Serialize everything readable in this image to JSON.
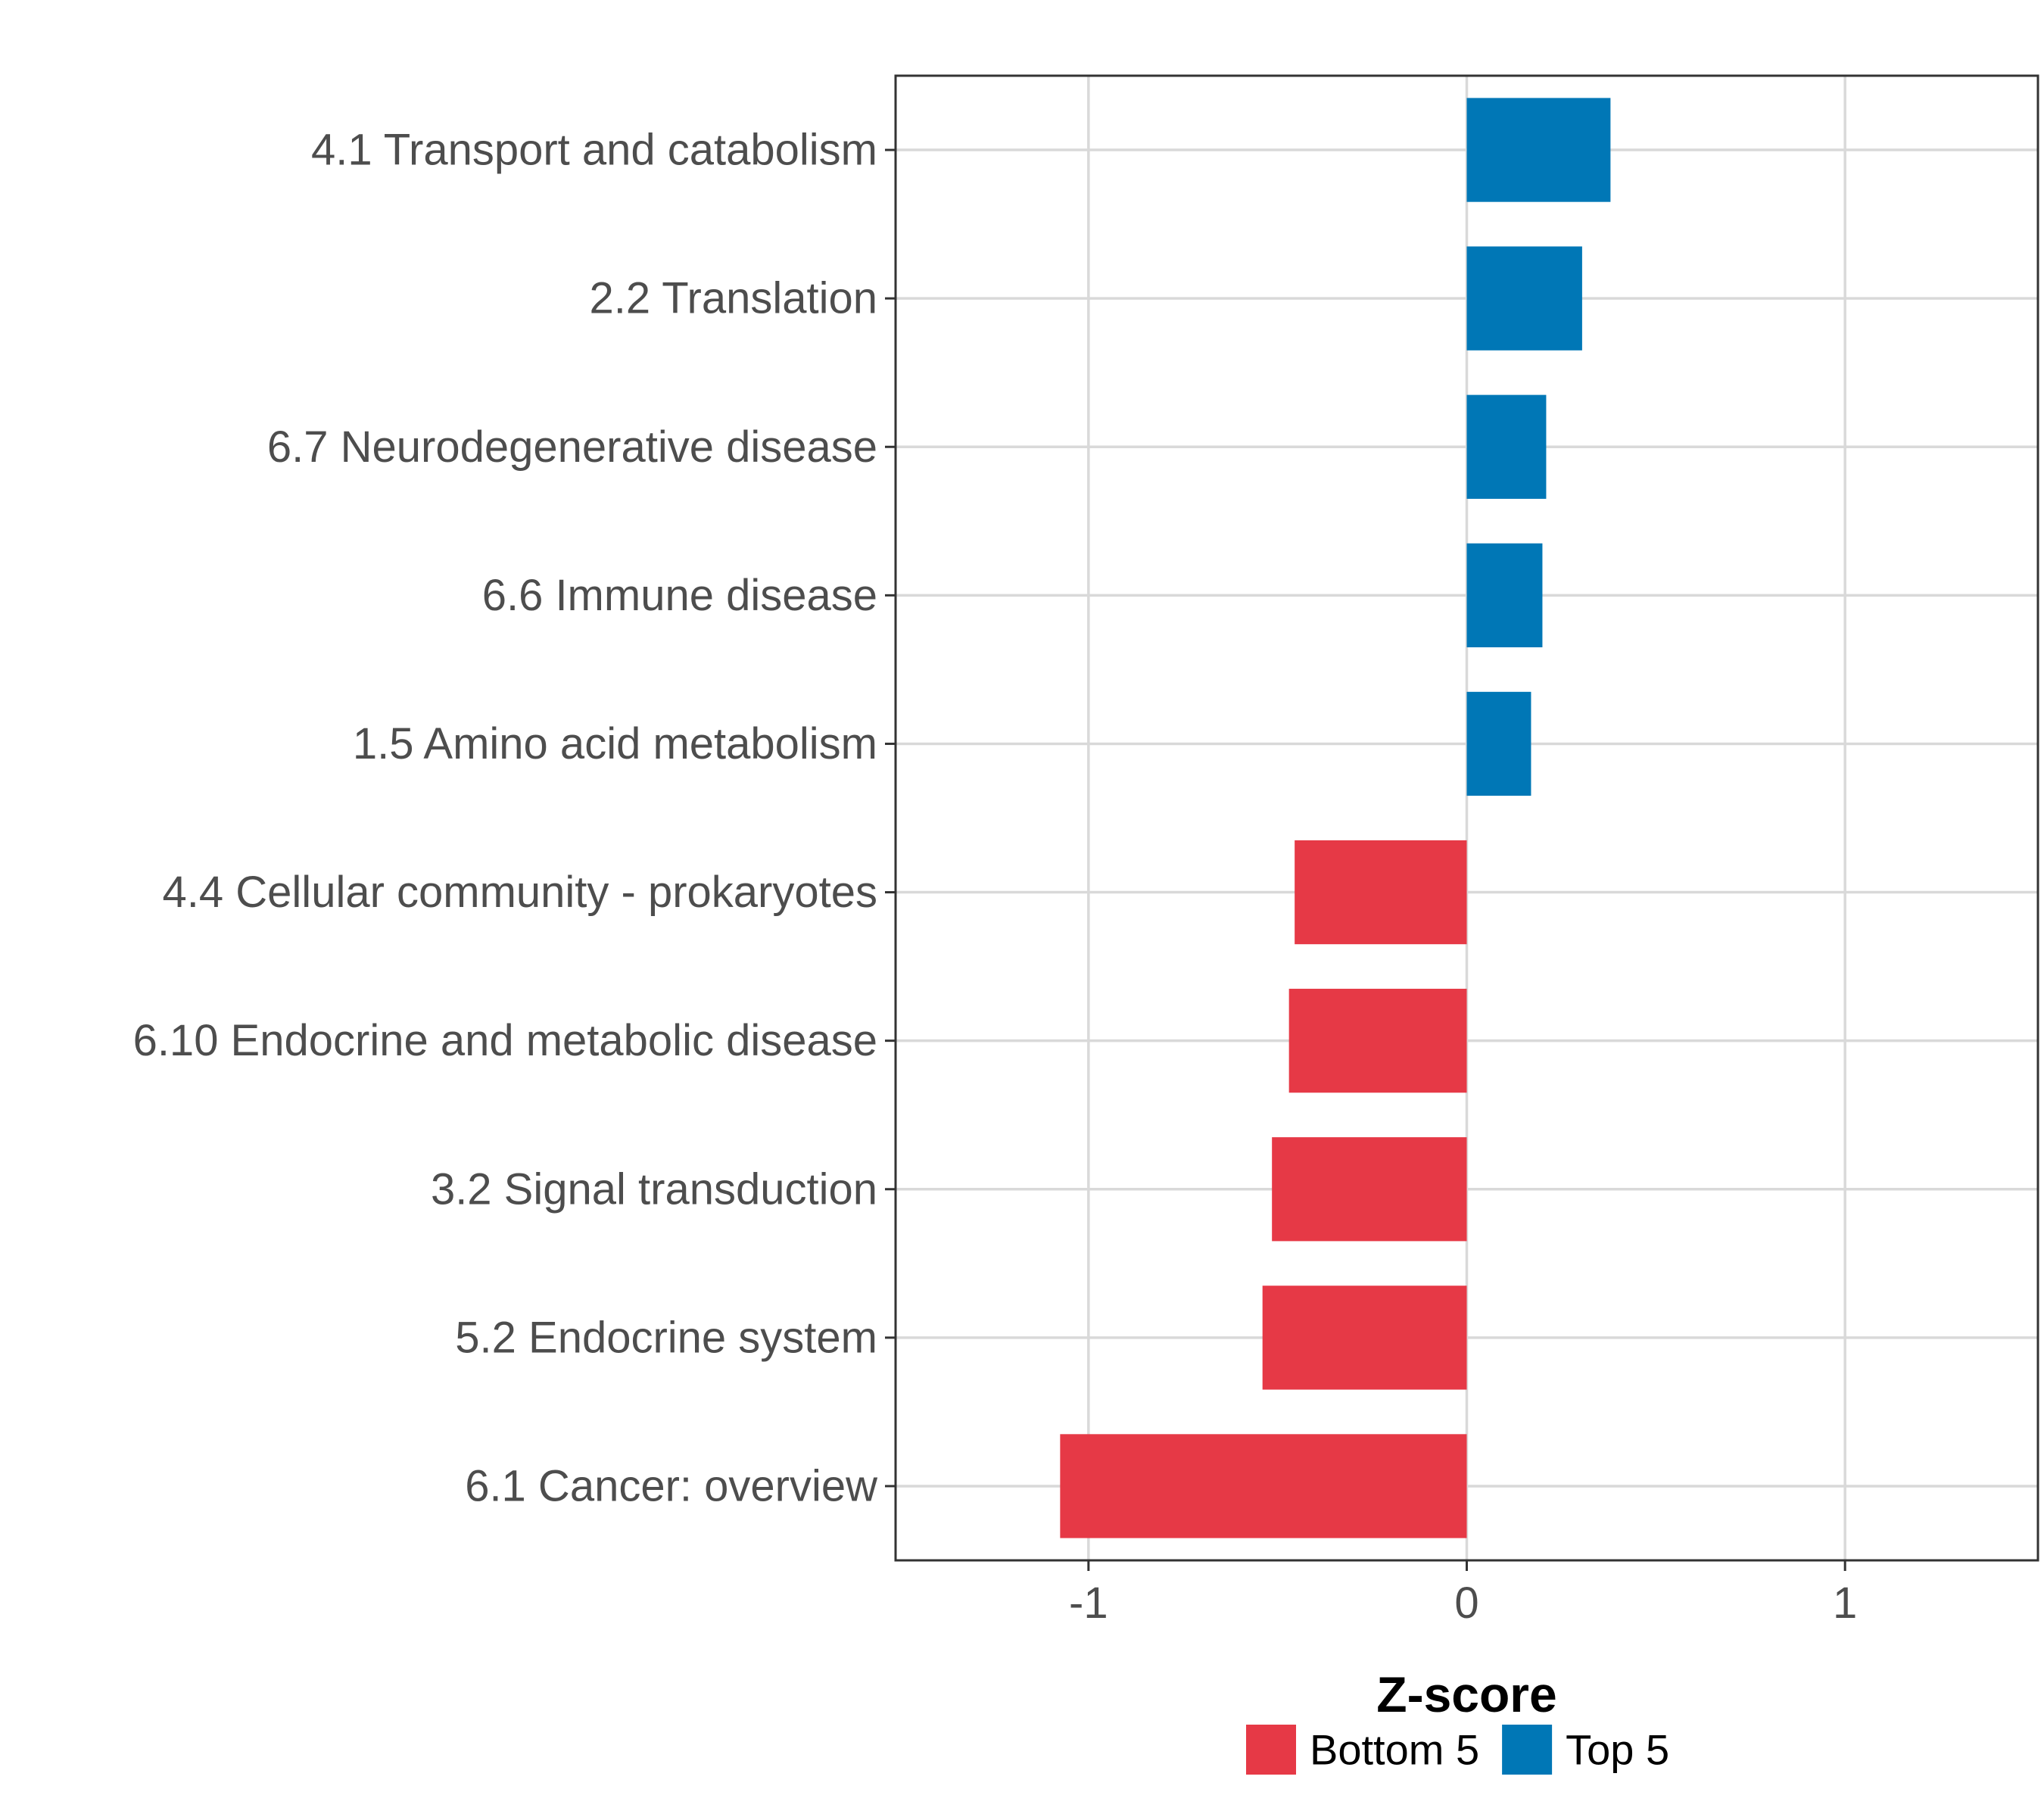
{
  "chart_data": {
    "type": "bar",
    "orientation": "horizontal",
    "categories": [
      "4.1 Transport and catabolism",
      "2.2 Translation",
      "6.7 Neurodegenerative disease",
      "6.6 Immune disease",
      "1.5 Amino acid metabolism",
      "4.4 Cellular community - prokaryotes",
      "6.10 Endocrine and metabolic disease",
      "3.2 Signal transduction",
      "5.2 Endocrine system",
      "6.1 Cancer: overview"
    ],
    "values": [
      0.38,
      0.305,
      0.21,
      0.2,
      0.17,
      -0.455,
      -0.47,
      -0.515,
      -0.54,
      -1.075
    ],
    "groups": [
      "Top 5",
      "Top 5",
      "Top 5",
      "Top 5",
      "Top 5",
      "Bottom 5",
      "Bottom 5",
      "Bottom 5",
      "Bottom 5",
      "Bottom 5"
    ],
    "title": "",
    "xlabel": "Z-score",
    "ylabel": "",
    "xlim": [
      -1.51,
      1.51
    ],
    "xticks": [
      -1,
      0,
      1
    ],
    "xtick_labels": [
      "-1",
      "0",
      "1"
    ],
    "grid": true,
    "legend": {
      "position": "bottom",
      "entries": [
        {
          "label": "Bottom 5",
          "color": "#e63946"
        },
        {
          "label": "Top 5",
          "color": "#0077b6"
        }
      ]
    }
  }
}
